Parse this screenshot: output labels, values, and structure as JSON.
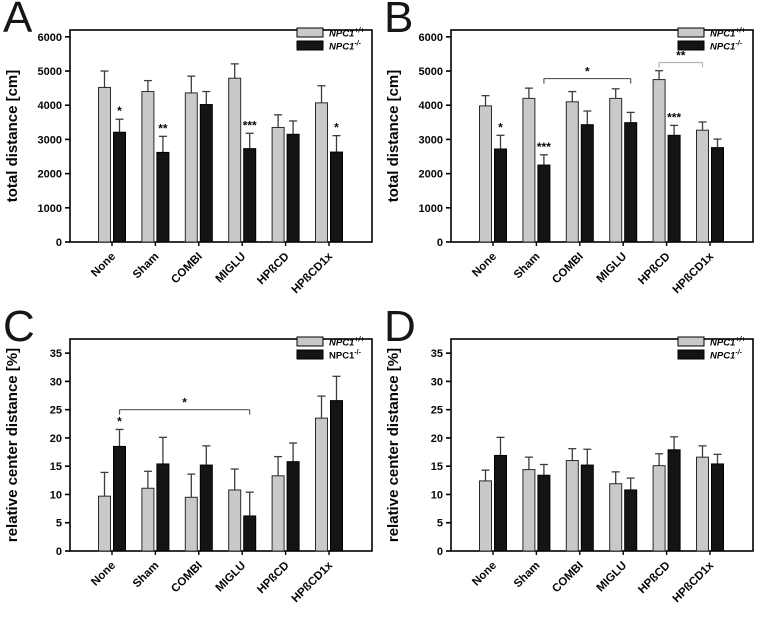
{
  "figure": {
    "background": "#ffffff",
    "colors": {
      "wt_fill": "#c9c9c9",
      "wt_stroke": "#2a2a2a",
      "ko_fill": "#141414",
      "ko_stroke": "#000000",
      "frame": "#000000",
      "whisker": "#3d3d3d",
      "bracket_dark": "#5a5a5a",
      "bracket_gray": "#b5b5b5"
    },
    "legend": {
      "items": [
        {
          "name": "NPC1",
          "sup": "+/+",
          "fill": "#c9c9c9"
        },
        {
          "name": "NPC1",
          "sup": "-/-",
          "fill": "#141414"
        }
      ]
    }
  },
  "chart_data": [
    {
      "panel": "A",
      "type": "bar",
      "ylabel": "total distance [cm]",
      "ylim": [
        0,
        6200
      ],
      "yticks": [
        0,
        1000,
        2000,
        3000,
        4000,
        5000,
        6000
      ],
      "grid": false,
      "legend_position": "top-right",
      "categories": [
        "None",
        "Sham",
        "COMBI",
        "MIGLU",
        "HPßCD",
        "HPßCD1x"
      ],
      "series": [
        {
          "name": "NPC1+/+",
          "role": "wt",
          "values": [
            4520,
            4400,
            4360,
            4790,
            3350,
            4070
          ],
          "errors": [
            480,
            320,
            490,
            420,
            370,
            500
          ]
        },
        {
          "name": "NPC1-/-",
          "role": "ko",
          "values": [
            3210,
            2620,
            4020,
            2730,
            3150,
            2630
          ],
          "errors": [
            380,
            470,
            380,
            450,
            390,
            480
          ]
        }
      ],
      "significance": [
        "*",
        "**",
        null,
        "***",
        null,
        "*"
      ],
      "brackets": [],
      "legend_italic": [
        true,
        true
      ]
    },
    {
      "panel": "B",
      "type": "bar",
      "ylabel": "total distance [cm]",
      "ylim": [
        0,
        6200
      ],
      "yticks": [
        0,
        1000,
        2000,
        3000,
        4000,
        5000,
        6000
      ],
      "grid": false,
      "legend_position": "top-right",
      "categories": [
        "None",
        "Sham",
        "COMBI",
        "MIGLU",
        "HPßCD",
        "HPßCD1x"
      ],
      "series": [
        {
          "name": "NPC1+/+",
          "role": "wt",
          "values": [
            3980,
            4200,
            4100,
            4200,
            4750,
            3270
          ],
          "errors": [
            300,
            300,
            300,
            280,
            260,
            240
          ]
        },
        {
          "name": "NPC1-/-",
          "role": "ko",
          "values": [
            2720,
            2250,
            3430,
            3490,
            3120,
            2760
          ],
          "errors": [
            400,
            300,
            400,
            300,
            290,
            250
          ]
        }
      ],
      "significance": [
        "*",
        "***",
        null,
        null,
        "***",
        null
      ],
      "brackets": [
        {
          "from_cat": 1,
          "from_series": 1,
          "to_cat": 3,
          "to_series": 1,
          "y": 4780,
          "label": "*",
          "line_color": "#5a5a5a",
          "label_color": "#000000"
        },
        {
          "from_cat": 4,
          "from_series": 0,
          "to_cat": 5,
          "to_series": 0,
          "y": 5250,
          "label": "**",
          "line_color": "#b5b5b5",
          "label_color": "#ababab"
        }
      ],
      "legend_italic": [
        true,
        true
      ]
    },
    {
      "panel": "C",
      "type": "bar",
      "ylabel": "relative center distance [%]",
      "ylim": [
        0,
        37.5
      ],
      "yticks": [
        0,
        5,
        10,
        15,
        20,
        25,
        30,
        35
      ],
      "grid": false,
      "legend_position": "top-right",
      "categories": [
        "None",
        "Sham",
        "COMBI",
        "MIGLU",
        "HPßCD",
        "HPßCD1x"
      ],
      "series": [
        {
          "name": "NPC1+/+",
          "role": "wt",
          "values": [
            9.7,
            11.1,
            9.5,
            10.8,
            13.3,
            23.5
          ],
          "errors": [
            4.2,
            3.0,
            4.1,
            3.7,
            3.4,
            3.9
          ]
        },
        {
          "name": "NPC1-/-",
          "role": "ko",
          "values": [
            18.5,
            15.4,
            15.2,
            6.2,
            15.8,
            26.6
          ],
          "errors": [
            3.0,
            4.7,
            3.4,
            4.2,
            3.3,
            4.3
          ]
        }
      ],
      "significance": [
        "*",
        null,
        null,
        null,
        null,
        null
      ],
      "brackets": [
        {
          "from_cat": 0,
          "from_series": 1,
          "to_cat": 3,
          "to_series": 1,
          "y": 25,
          "label": "*",
          "line_color": "#5a5a5a",
          "label_color": "#000000"
        }
      ],
      "legend_italic": [
        true,
        false
      ]
    },
    {
      "panel": "D",
      "type": "bar",
      "ylabel": "relative center distance [%]",
      "ylim": [
        0,
        37.5
      ],
      "yticks": [
        0,
        5,
        10,
        15,
        20,
        25,
        30,
        35
      ],
      "grid": false,
      "legend_position": "top-right",
      "categories": [
        "None",
        "Sham",
        "COMBI",
        "MIGLU",
        "HPßCD",
        "HPßCD1x"
      ],
      "series": [
        {
          "name": "NPC1+/+",
          "role": "wt",
          "values": [
            12.4,
            14.4,
            16.0,
            11.9,
            15.1,
            16.6
          ],
          "errors": [
            1.9,
            2.2,
            2.1,
            2.1,
            2.1,
            2.0
          ]
        },
        {
          "name": "NPC1-/-",
          "role": "ko",
          "values": [
            16.9,
            13.4,
            15.2,
            10.8,
            17.9,
            15.4
          ],
          "errors": [
            3.2,
            1.9,
            2.8,
            2.1,
            2.3,
            1.7
          ]
        }
      ],
      "significance": [
        null,
        null,
        null,
        null,
        null,
        null
      ],
      "brackets": [],
      "legend_italic": [
        true,
        true
      ]
    }
  ]
}
